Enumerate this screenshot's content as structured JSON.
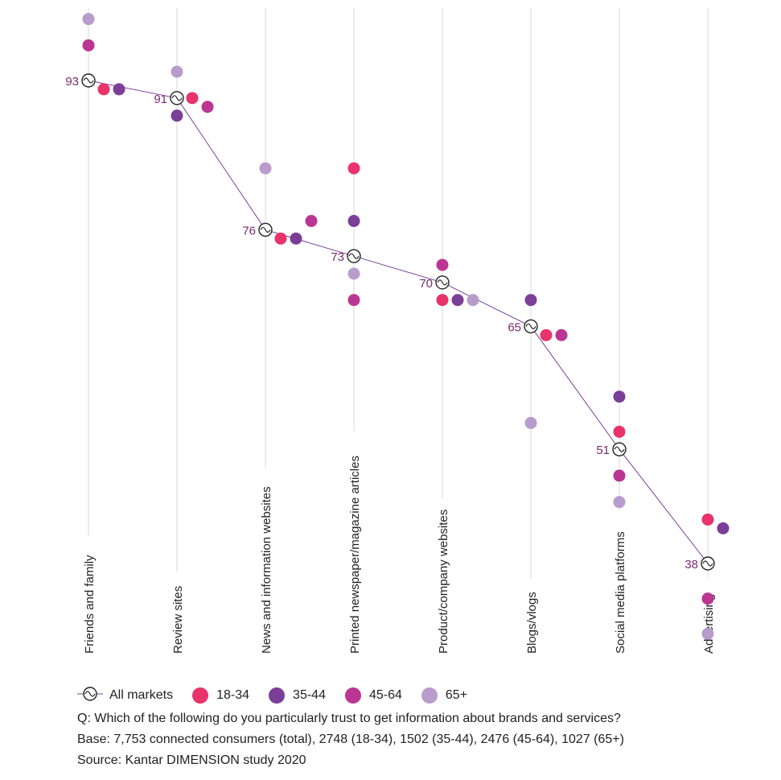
{
  "chart_data": {
    "type": "scatter",
    "categories": [
      "Friends and family",
      "Review sites",
      "News and information websites",
      "Printed newspaper/magazine articles",
      "Product/company websites",
      "Blogs/vlogs",
      "Social media platforms",
      "Advertising"
    ],
    "all_markets": {
      "name": "All markets",
      "values": [
        93,
        91,
        76,
        73,
        70,
        65,
        51,
        38
      ]
    },
    "series": [
      {
        "name": "18-34",
        "color": "#e8336b",
        "values": [
          92,
          91,
          75,
          83,
          68,
          64,
          53,
          43
        ]
      },
      {
        "name": "35-44",
        "color": "#7b3f98",
        "values": [
          92,
          89,
          75,
          77,
          68,
          68,
          57,
          42
        ]
      },
      {
        "name": "45-64",
        "color": "#bb3592",
        "values": [
          97,
          90,
          77,
          68,
          72,
          64,
          48,
          34
        ]
      },
      {
        "name": "65+",
        "color": "#b89ccc",
        "values": [
          100,
          94,
          83,
          71,
          68,
          54,
          45,
          30
        ]
      }
    ],
    "ylim": [
      30,
      100
    ],
    "grid": true,
    "legend_position": "bottom-left"
  },
  "legend": {
    "all_markets_label": "All markets",
    "items": [
      {
        "label": "18-34",
        "color": "#e8336b"
      },
      {
        "label": "35-44",
        "color": "#7b3f98"
      },
      {
        "label": "45-64",
        "color": "#bb3592"
      },
      {
        "label": "65+",
        "color": "#b89ccc"
      }
    ]
  },
  "notes": {
    "question": "Q: Which of the following do you particularly trust to get information about brands and services?",
    "base": "Base: 7,753 connected consumers (total), 2748 (18-34), 1502 (35-44), 2476 (45-64), 1027 (65+)",
    "source": "Source: Kantar DIMENSION study 2020"
  },
  "colors": {
    "line": "#7b3f98",
    "label": "#7b2a6e",
    "grid": "#d8d8d8"
  }
}
